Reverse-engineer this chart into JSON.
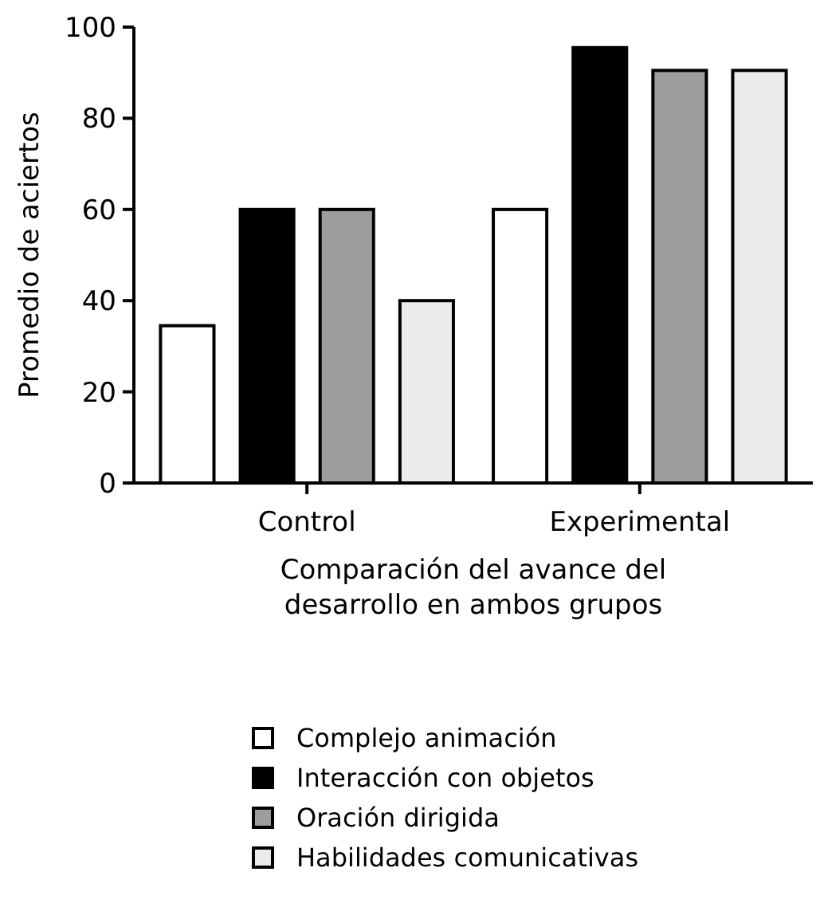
{
  "chart_data": {
    "type": "bar",
    "xlabel": "Comparación del avance del\ndesarrollo en ambos grupos",
    "ylabel": "Promedio de aciertos",
    "categories": [
      "Control",
      "Experimental"
    ],
    "series": [
      {
        "name": "Complejo animación",
        "color": "#ffffff",
        "values": [
          34.5,
          60
        ]
      },
      {
        "name": "Interacción con objetos",
        "color": "#000000",
        "values": [
          60,
          95.5
        ]
      },
      {
        "name": "Oración dirigida",
        "color": "#9d9d9d",
        "values": [
          60,
          90.5
        ]
      },
      {
        "name": "Habilidades comunicativas",
        "color": "#ebebeb",
        "values": [
          40,
          90.5
        ]
      }
    ],
    "ylim": [
      0,
      100
    ],
    "yticks": [
      0,
      20,
      40,
      60,
      80,
      100
    ],
    "grid": false,
    "legend": "bottom"
  }
}
